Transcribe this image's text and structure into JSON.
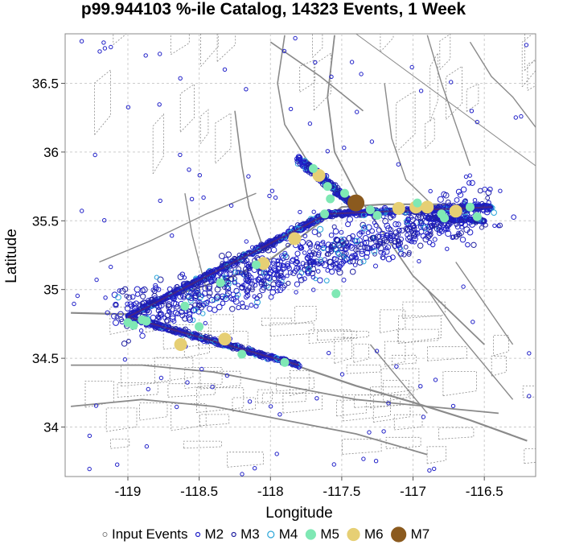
{
  "chart_data": {
    "type": "scatter",
    "title": "p99.944103 %-ile Catalog, 14323 Events, 1 Week",
    "xlabel": "Longitude",
    "ylabel": "Latitude",
    "xlim": [
      -119.44,
      -116.14
    ],
    "ylim": [
      33.64,
      36.86
    ],
    "xticks": [
      -119,
      -118.5,
      -118,
      -117.5,
      -117,
      -116.5
    ],
    "xtick_labels": [
      "-119",
      "-118.5",
      "-118",
      "-117.5",
      "-117",
      "-116.5"
    ],
    "yticks": [
      34,
      34.5,
      35,
      35.5,
      36,
      36.5
    ],
    "ytick_labels": [
      "34",
      "34.5",
      "35",
      "35.5",
      "36",
      "36.5"
    ],
    "grid": true,
    "legend_position": "bottom",
    "legend": [
      {
        "label": "Input Events",
        "key": "input",
        "color": "#7f7f7f",
        "fill": "none"
      },
      {
        "label": "M2",
        "key": "M2",
        "color": "#1f1fc8",
        "fill": "none"
      },
      {
        "label": "M3",
        "key": "M3",
        "color": "#2020a0",
        "fill": "none"
      },
      {
        "label": "M4",
        "key": "M4",
        "color": "#2aa6d8",
        "fill": "none"
      },
      {
        "label": "M5",
        "key": "M5",
        "color": "#7fe8b4",
        "fill": "#7fe8b4"
      },
      {
        "label": "M6",
        "key": "M6",
        "color": "#e6cf74",
        "fill": "#e6cf74"
      },
      {
        "label": "M7",
        "key": "M7",
        "color": "#8b5a1e",
        "fill": "#8b5a1e"
      }
    ],
    "fault_color": "#8a8a8a",
    "large_events": [
      {
        "mag": "M7",
        "lon": -117.4,
        "lat": 35.63
      },
      {
        "mag": "M6",
        "lon": -117.66,
        "lat": 35.83
      },
      {
        "mag": "M6",
        "lon": -117.1,
        "lat": 35.59
      },
      {
        "mag": "M6",
        "lon": -116.9,
        "lat": 35.6
      },
      {
        "mag": "M6",
        "lon": -116.7,
        "lat": 35.57
      },
      {
        "mag": "M6",
        "lon": -117.83,
        "lat": 35.37
      },
      {
        "mag": "M6",
        "lon": -118.05,
        "lat": 35.19
      },
      {
        "mag": "M6",
        "lon": -118.63,
        "lat": 34.6
      },
      {
        "mag": "M6",
        "lon": -118.32,
        "lat": 34.64
      },
      {
        "mag": "M6",
        "lon": -116.98,
        "lat": 35.6
      },
      {
        "mag": "M5",
        "lon": -117.6,
        "lat": 35.75
      },
      {
        "mag": "M5",
        "lon": -117.48,
        "lat": 35.7
      },
      {
        "mag": "M5",
        "lon": -117.7,
        "lat": 35.88
      },
      {
        "mag": "M5",
        "lon": -116.6,
        "lat": 35.6
      },
      {
        "mag": "M5",
        "lon": -116.8,
        "lat": 35.55
      },
      {
        "mag": "M5",
        "lon": -117.3,
        "lat": 35.58
      },
      {
        "mag": "M5",
        "lon": -117.58,
        "lat": 35.66
      },
      {
        "mag": "M5",
        "lon": -118.87,
        "lat": 34.77
      },
      {
        "mag": "M5",
        "lon": -118.5,
        "lat": 34.73
      },
      {
        "mag": "M5",
        "lon": -118.9,
        "lat": 34.78
      },
      {
        "mag": "M5",
        "lon": -118.2,
        "lat": 34.53
      },
      {
        "mag": "M5",
        "lon": -117.9,
        "lat": 34.47
      },
      {
        "mag": "M5",
        "lon": -118.1,
        "lat": 35.18
      },
      {
        "mag": "M5",
        "lon": -118.35,
        "lat": 35.05
      },
      {
        "mag": "M5",
        "lon": -118.6,
        "lat": 34.88
      },
      {
        "mag": "M5",
        "lon": -117.62,
        "lat": 35.55
      },
      {
        "mag": "M5",
        "lon": -117.54,
        "lat": 34.97
      },
      {
        "mag": "M5",
        "lon": -116.78,
        "lat": 35.52
      },
      {
        "mag": "M5",
        "lon": -116.55,
        "lat": 35.53
      },
      {
        "mag": "M5",
        "lon": -117.25,
        "lat": 35.54
      },
      {
        "mag": "M5",
        "lon": -118.96,
        "lat": 34.74
      },
      {
        "mag": "M5",
        "lon": -119.0,
        "lat": 34.76
      },
      {
        "mag": "M5",
        "lon": -116.97,
        "lat": 35.63
      }
    ]
  }
}
